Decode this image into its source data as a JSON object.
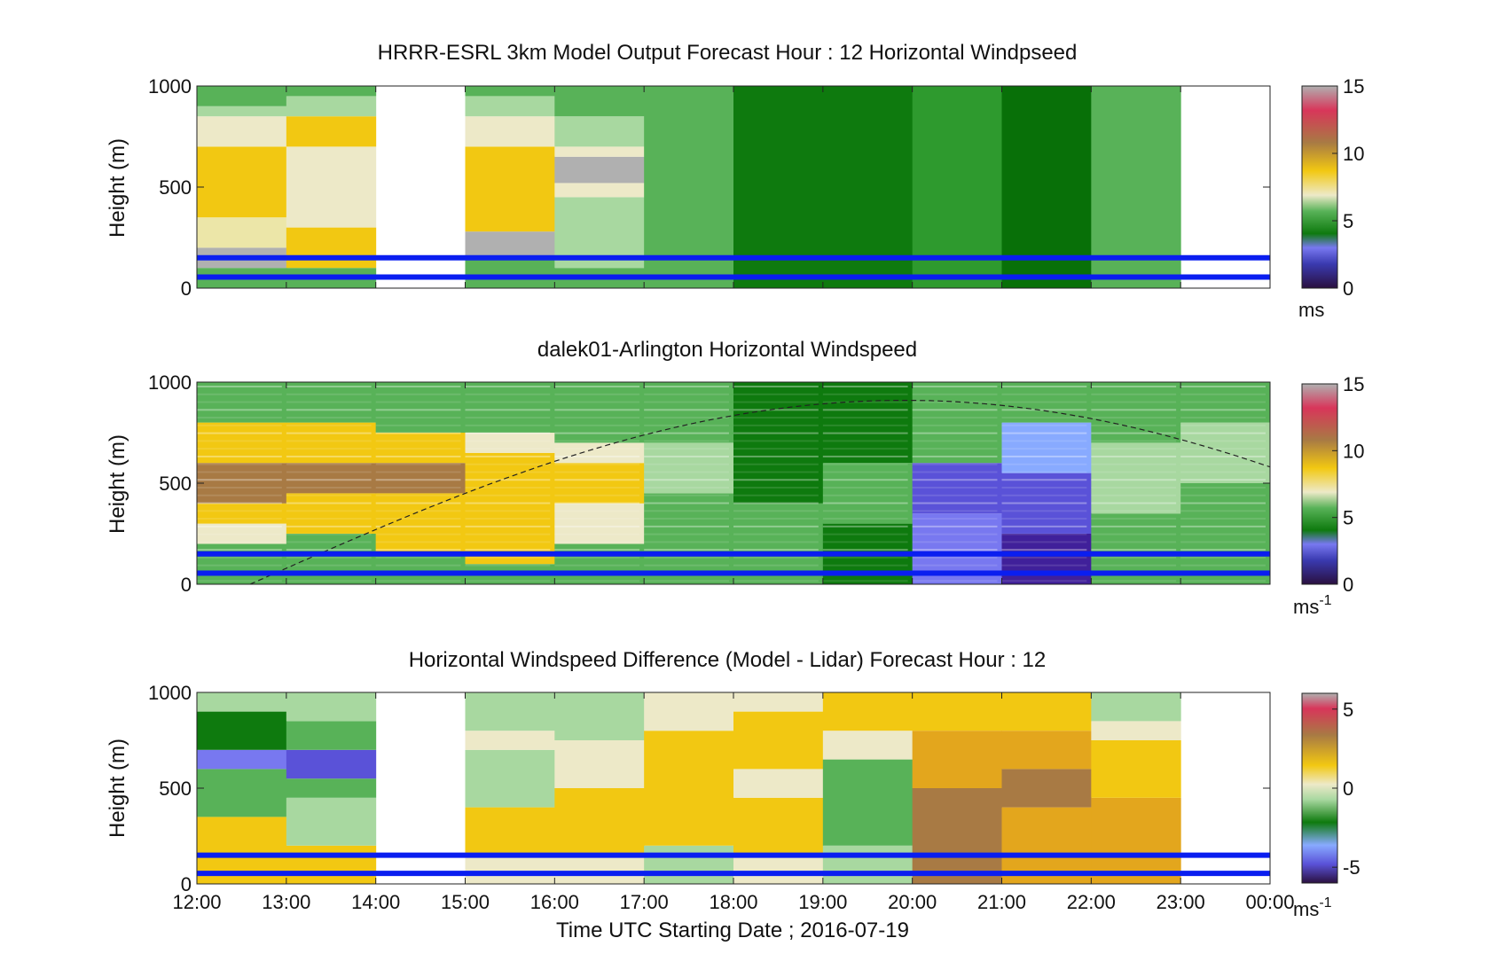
{
  "figure": {
    "xlabel": "Time UTC  Starting Date ; 2016-07-19",
    "x_ticks": [
      "12:00",
      "13:00",
      "14:00",
      "15:00",
      "16:00",
      "17:00",
      "18:00",
      "19:00",
      "20:00",
      "21:00",
      "22:00",
      "23:00",
      "00:00"
    ]
  },
  "chart_data": [
    {
      "type": "heatmap",
      "title": "HRRR-ESRL 3km Model Output   Forecast Hour : 12 Horizontal Windpseed",
      "ylabel": "Height (m)",
      "ylim": [
        0,
        1000
      ],
      "y_ticks": [
        "0",
        "500",
        "1000"
      ],
      "colorbar": {
        "ticks": [
          "0",
          "5",
          "10",
          "15"
        ],
        "range": [
          0,
          15
        ],
        "unit": "ms",
        "unit_sup": ""
      },
      "hourly_columns": [
        {
          "hour": "12:00",
          "profile": [
            [
              0,
              "green"
            ],
            [
              100,
              "gray"
            ],
            [
              200,
              "light-yellow"
            ],
            [
              350,
              "yellow"
            ],
            [
              700,
              "cream"
            ],
            [
              850,
              "light-green"
            ],
            [
              900,
              "green"
            ]
          ]
        },
        {
          "hour": "13:00",
          "profile": [
            [
              0,
              "green"
            ],
            [
              100,
              "yellow"
            ],
            [
              300,
              "cream"
            ],
            [
              700,
              "yellow"
            ],
            [
              850,
              "light-green"
            ],
            [
              950,
              "green"
            ]
          ]
        },
        {
          "hour": "14:00",
          "profile": []
        },
        {
          "hour": "15:00",
          "profile": [
            [
              0,
              "green"
            ],
            [
              150,
              "gray"
            ],
            [
              280,
              "yellow"
            ],
            [
              700,
              "cream"
            ],
            [
              850,
              "light-green"
            ],
            [
              950,
              "green"
            ]
          ]
        },
        {
          "hour": "16:00",
          "profile": [
            [
              0,
              "green"
            ],
            [
              100,
              "light-green"
            ],
            [
              450,
              "cream"
            ],
            [
              520,
              "gray"
            ],
            [
              650,
              "cream"
            ],
            [
              700,
              "light-green"
            ],
            [
              850,
              "green"
            ]
          ]
        },
        {
          "hour": "17:00",
          "profile": [
            [
              0,
              "green"
            ]
          ]
        },
        {
          "hour": "18:00",
          "profile": [
            [
              0,
              "dark-green"
            ]
          ]
        },
        {
          "hour": "19:00",
          "profile": [
            [
              0,
              "dark-green"
            ]
          ]
        },
        {
          "hour": "20:00",
          "profile": [
            [
              0,
              "mid-green"
            ]
          ]
        },
        {
          "hour": "21:00",
          "profile": [
            [
              0,
              "darker-green"
            ]
          ]
        },
        {
          "hour": "22:00",
          "profile": [
            [
              0,
              "green"
            ]
          ]
        },
        {
          "hour": "23:00",
          "profile": []
        }
      ],
      "reference_lines_m": [
        55,
        150
      ]
    },
    {
      "type": "heatmap",
      "title": "dalek01-Arlington  Horizontal Windspeed",
      "ylabel": "Height (m)",
      "ylim": [
        0,
        1000
      ],
      "y_ticks": [
        "0",
        "500",
        "1000"
      ],
      "colorbar": {
        "ticks": [
          "0",
          "5",
          "10",
          "15"
        ],
        "range": [
          0,
          15
        ],
        "unit": "ms",
        "unit_sup": "-1"
      },
      "hourly_columns": [
        {
          "hour": "12:00",
          "profile": [
            [
              0,
              "green"
            ],
            [
              200,
              "cream"
            ],
            [
              300,
              "yellow"
            ],
            [
              400,
              "brown"
            ],
            [
              600,
              "yellow"
            ],
            [
              800,
              "green"
            ]
          ]
        },
        {
          "hour": "13:00",
          "profile": [
            [
              0,
              "green"
            ],
            [
              250,
              "yellow"
            ],
            [
              450,
              "brown"
            ],
            [
              600,
              "yellow"
            ],
            [
              800,
              "green"
            ]
          ]
        },
        {
          "hour": "14:00",
          "profile": [
            [
              0,
              "green"
            ],
            [
              150,
              "yellow"
            ],
            [
              450,
              "brown"
            ],
            [
              600,
              "yellow"
            ],
            [
              750,
              "green"
            ]
          ]
        },
        {
          "hour": "15:00",
          "profile": [
            [
              0,
              "green"
            ],
            [
              100,
              "yellow"
            ],
            [
              650,
              "cream"
            ],
            [
              750,
              "green"
            ]
          ]
        },
        {
          "hour": "16:00",
          "profile": [
            [
              0,
              "green"
            ],
            [
              200,
              "cream"
            ],
            [
              400,
              "yellow"
            ],
            [
              600,
              "cream"
            ],
            [
              700,
              "green"
            ]
          ]
        },
        {
          "hour": "17:00",
          "profile": [
            [
              0,
              "green"
            ],
            [
              450,
              "light-green"
            ],
            [
              700,
              "green"
            ]
          ]
        },
        {
          "hour": "18:00",
          "profile": [
            [
              0,
              "green"
            ],
            [
              400,
              "dark-green"
            ]
          ]
        },
        {
          "hour": "19:00",
          "profile": [
            [
              0,
              "dark-green"
            ],
            [
              300,
              "green"
            ],
            [
              600,
              "dark-green"
            ]
          ]
        },
        {
          "hour": "20:00",
          "profile": [
            [
              0,
              "blue"
            ],
            [
              350,
              "blue-violet"
            ],
            [
              600,
              "green"
            ]
          ]
        },
        {
          "hour": "21:00",
          "profile": [
            [
              0,
              "indigo"
            ],
            [
              250,
              "blue-violet"
            ],
            [
              550,
              "light-blue"
            ],
            [
              800,
              "green"
            ]
          ]
        },
        {
          "hour": "22:00",
          "profile": [
            [
              0,
              "green"
            ],
            [
              350,
              "light-green"
            ],
            [
              700,
              "green"
            ]
          ]
        },
        {
          "hour": "23:00",
          "profile": [
            [
              0,
              "green"
            ],
            [
              500,
              "light-green"
            ],
            [
              800,
              "green"
            ]
          ]
        }
      ],
      "overlay": "dashed curve rising from ~0 m at 12:40 to ~910 m near 20:00, falling to ~600 m at 00:00",
      "reference_lines_m": [
        55,
        150
      ]
    },
    {
      "type": "heatmap",
      "title": "Horizontal Windspeed Difference (Model - Lidar) Forecast Hour : 12",
      "ylabel": "Height (m)",
      "ylim": [
        0,
        1000
      ],
      "y_ticks": [
        "0",
        "500",
        "1000"
      ],
      "x_ticks": [
        "12:00",
        "13:00",
        "14:00",
        "15:00",
        "16:00",
        "17:00",
        "18:00",
        "19:00",
        "20:00",
        "21:00",
        "22:00",
        "23:00",
        "00:00"
      ],
      "colorbar": {
        "ticks": [
          "-5",
          "0",
          "5"
        ],
        "range": [
          -6,
          6
        ],
        "unit": "ms",
        "unit_sup": "-1"
      },
      "hourly_columns": [
        {
          "hour": "12:00",
          "profile": [
            [
              0,
              "yellow"
            ],
            [
              350,
              "green"
            ],
            [
              600,
              "blue"
            ],
            [
              700,
              "dark-green"
            ],
            [
              900,
              "light-green"
            ]
          ]
        },
        {
          "hour": "13:00",
          "profile": [
            [
              0,
              "yellow"
            ],
            [
              200,
              "light-green"
            ],
            [
              450,
              "green"
            ],
            [
              550,
              "blue-violet"
            ],
            [
              700,
              "green"
            ],
            [
              850,
              "light-green"
            ]
          ]
        },
        {
          "hour": "14:00",
          "profile": []
        },
        {
          "hour": "15:00",
          "profile": [
            [
              0,
              "cream"
            ],
            [
              150,
              "yellow"
            ],
            [
              400,
              "light-green"
            ],
            [
              700,
              "cream"
            ],
            [
              800,
              "light-green"
            ]
          ]
        },
        {
          "hour": "16:00",
          "profile": [
            [
              0,
              "cream"
            ],
            [
              150,
              "yellow"
            ],
            [
              500,
              "cream"
            ],
            [
              750,
              "light-green"
            ]
          ]
        },
        {
          "hour": "17:00",
          "profile": [
            [
              0,
              "light-green"
            ],
            [
              200,
              "yellow"
            ],
            [
              800,
              "cream"
            ]
          ]
        },
        {
          "hour": "18:00",
          "profile": [
            [
              0,
              "cream"
            ],
            [
              150,
              "yellow"
            ],
            [
              450,
              "cream"
            ],
            [
              600,
              "yellow"
            ],
            [
              900,
              "cream"
            ]
          ]
        },
        {
          "hour": "19:00",
          "profile": [
            [
              0,
              "light-green"
            ],
            [
              200,
              "green"
            ],
            [
              650,
              "cream"
            ],
            [
              800,
              "yellow"
            ]
          ]
        },
        {
          "hour": "20:00",
          "profile": [
            [
              0,
              "brown"
            ],
            [
              500,
              "orange"
            ],
            [
              800,
              "yellow"
            ]
          ]
        },
        {
          "hour": "21:00",
          "profile": [
            [
              0,
              "orange"
            ],
            [
              400,
              "brown"
            ],
            [
              600,
              "orange"
            ],
            [
              800,
              "yellow"
            ]
          ]
        },
        {
          "hour": "22:00",
          "profile": [
            [
              0,
              "orange"
            ],
            [
              450,
              "yellow"
            ],
            [
              750,
              "cream"
            ],
            [
              850,
              "light-green"
            ]
          ]
        },
        {
          "hour": "23:00",
          "profile": []
        }
      ],
      "reference_lines_m": [
        55,
        150
      ]
    }
  ],
  "colors": {
    "dark-green": "#0e7a0e",
    "darker-green": "#087008",
    "mid-green": "#2e9a2e",
    "green": "#58b258",
    "light-green": "#a8d8a0",
    "cream": "#ede9c8",
    "light-yellow": "#ece6a8",
    "yellow": "#f2c812",
    "orange": "#e3a61d",
    "brown": "#a87a44",
    "gray": "#b0b0b0",
    "blue": "#7878f0",
    "blue-violet": "#5a52d8",
    "indigo": "#40209a",
    "light-blue": "#88aaff",
    "ref-line": "#0a1ef0"
  }
}
